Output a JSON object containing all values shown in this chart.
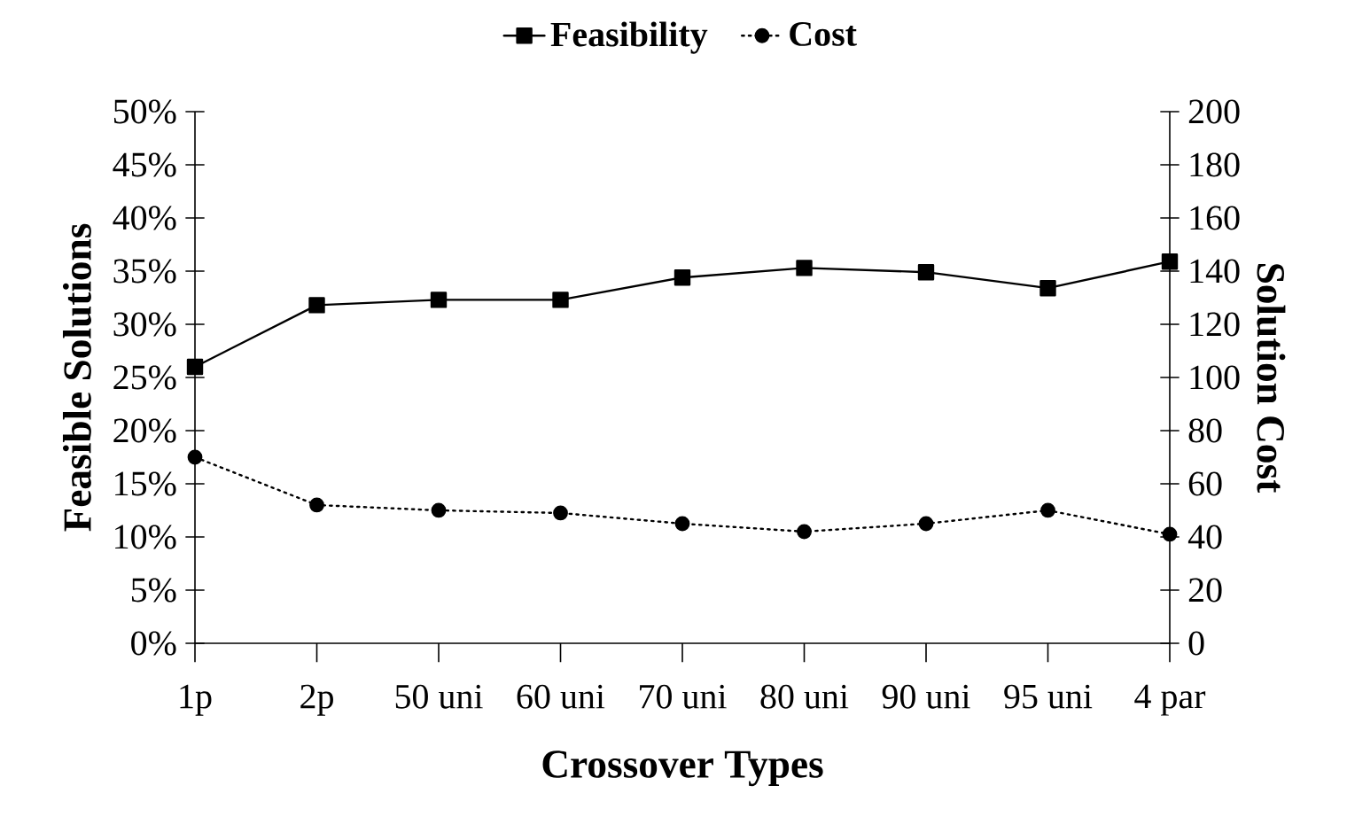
{
  "chart_data": {
    "type": "line",
    "xlabel": "Crossover Types",
    "ylabel": "Feasible Solutions",
    "y2label": "Solution Cost",
    "categories": [
      "1p",
      "2p",
      "50 uni",
      "60 uni",
      "70 uni",
      "80 uni",
      "90 uni",
      "95 uni",
      "4 par"
    ],
    "series": [
      {
        "name": "Feasibility",
        "color": "#000000",
        "marker": "square",
        "line_style": "solid",
        "values": [
          26,
          31.8,
          32.3,
          32.3,
          34.4,
          35.3,
          34.9,
          33.4,
          35.9
        ]
      },
      {
        "name": "Cost",
        "color": "#000000",
        "marker": "circle",
        "line_style": "dotted",
        "axis": "y2",
        "values": [
          70,
          52,
          50,
          49,
          45,
          42,
          45,
          50,
          41
        ]
      }
    ],
    "ylim": [
      0,
      50
    ],
    "yticks": [
      {
        "value": 0,
        "label": "0%"
      },
      {
        "value": 5,
        "label": "5%"
      },
      {
        "value": 10,
        "label": "10%"
      },
      {
        "value": 15,
        "label": "15%"
      },
      {
        "value": 20,
        "label": "20%"
      },
      {
        "value": 25,
        "label": "25%"
      },
      {
        "value": 30,
        "label": "30%"
      },
      {
        "value": 35,
        "label": "35%"
      },
      {
        "value": 40,
        "label": "40%"
      },
      {
        "value": 45,
        "label": "45%"
      },
      {
        "value": 50,
        "label": "50%"
      }
    ],
    "y2lim": [
      0,
      200
    ],
    "y2ticks": [
      0,
      20,
      40,
      60,
      80,
      100,
      120,
      140,
      160,
      180,
      200
    ],
    "legend": "top",
    "grid": false
  }
}
